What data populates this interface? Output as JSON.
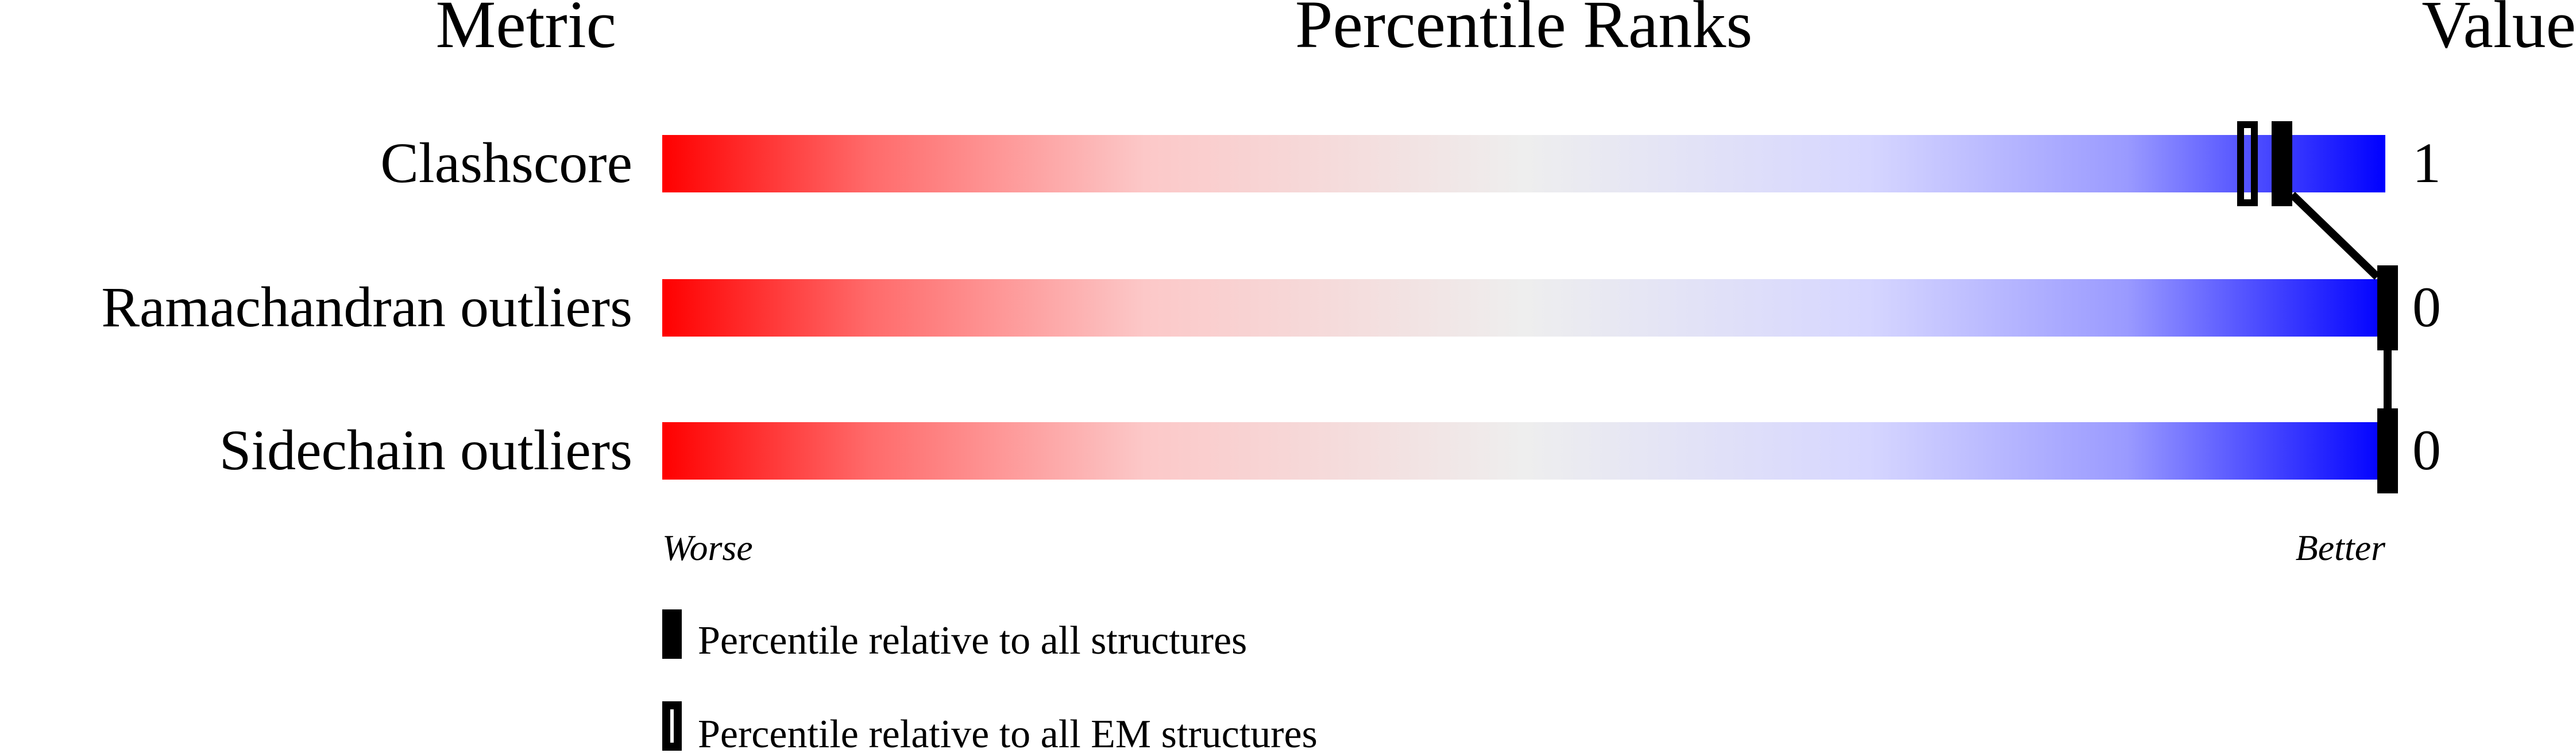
{
  "chart_data": {
    "type": "percentile-slider",
    "headers": {
      "metric": "Metric",
      "ranks": "Percentile Ranks",
      "value": "Value"
    },
    "metrics": [
      {
        "label": "Clashscore",
        "value": "1",
        "percentile_all": 94,
        "percentile_em": 92
      },
      {
        "label": "Ramachandran outliers",
        "value": "0",
        "percentile_all": 100,
        "percentile_em": null
      },
      {
        "label": "Sidechain outliers",
        "value": "0",
        "percentile_all": 100,
        "percentile_em": null
      }
    ],
    "axis": {
      "left": "Worse",
      "right": "Better",
      "range": [
        0,
        100
      ]
    },
    "legend": [
      {
        "marker": "filled",
        "label": "Percentile relative to all structures"
      },
      {
        "marker": "open",
        "label": "Percentile relative to all EM structures"
      }
    ],
    "colors": {
      "worse": "#ff0000",
      "middle": "#eeeeee",
      "better": "#0000ff",
      "marker": "#000000"
    }
  }
}
